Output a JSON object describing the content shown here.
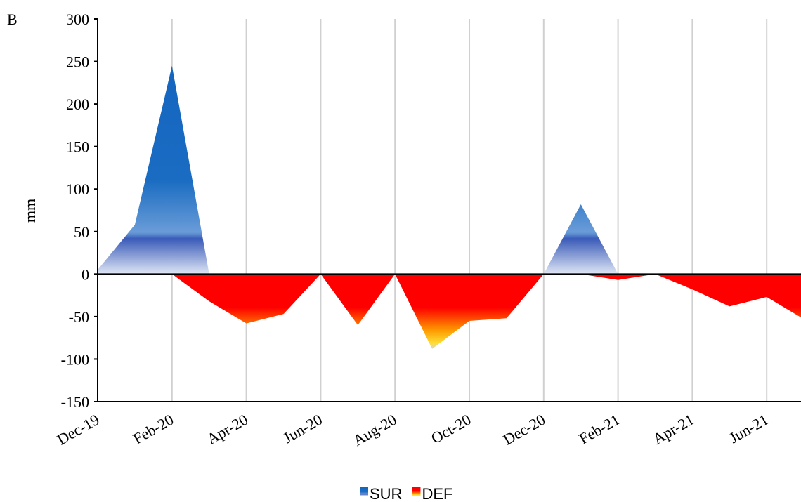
{
  "chart_data": {
    "type": "area",
    "panel_label": "B",
    "y_label": "mm",
    "categories": [
      "Dec-19",
      null,
      "Feb-20",
      null,
      "Apr-20",
      null,
      "Jun-20",
      null,
      "Aug-20",
      null,
      "Oct-20",
      null,
      "Dec-20",
      null,
      "Feb-21",
      null,
      "Apr-21",
      null,
      "Jun-21",
      null
    ],
    "series": [
      {
        "name": "SUR",
        "color": "#1565c0",
        "values": [
          5,
          58,
          245,
          0,
          0,
          0,
          0,
          0,
          0,
          0,
          0,
          0,
          0,
          82,
          0,
          0,
          0,
          0,
          0,
          0
        ]
      },
      {
        "name": "DEF",
        "color": "#ff0000",
        "values": [
          0,
          0,
          0,
          -32,
          -58,
          -47,
          0,
          -60,
          0,
          -88,
          -55,
          -52,
          0,
          0,
          -7,
          0,
          -18,
          -38,
          -27,
          -53
        ]
      }
    ],
    "ylim": [
      -150,
      300
    ],
    "yticks": [
      -150,
      -100,
      -50,
      0,
      50,
      100,
      150,
      200,
      250,
      300
    ],
    "grid": true,
    "legend": "bottom"
  }
}
